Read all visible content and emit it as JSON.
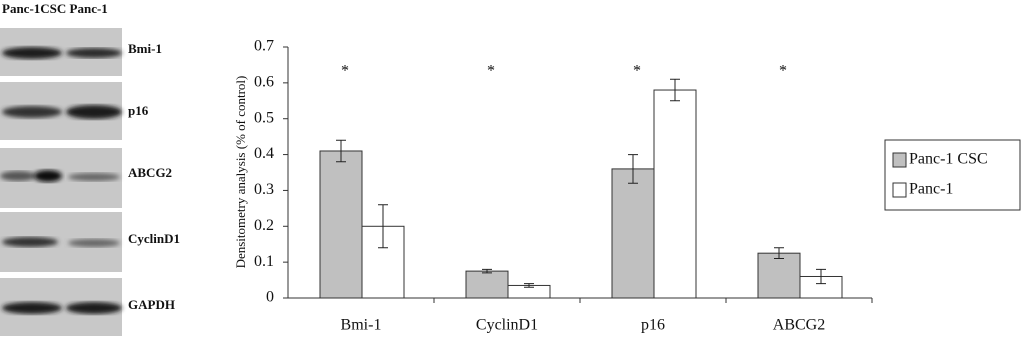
{
  "blot": {
    "header": "Panc-1CSC Panc-1",
    "rows": [
      "Bmi-1",
      "p16",
      "ABCG2",
      "CyclinD1",
      "GAPDH"
    ]
  },
  "chart_data": {
    "type": "bar",
    "y_label": "Densitometry analysis  (% of control)",
    "categories": [
      "Bmi-1",
      "CyclinD1",
      "p16",
      "ABCG2"
    ],
    "annotations": [
      "*",
      "*",
      "*",
      "*"
    ],
    "series": [
      {
        "name": "Panc-1 CSC",
        "color": "#c0c0c0",
        "values": [
          0.41,
          0.075,
          0.36,
          0.125
        ],
        "errors": [
          0.03,
          0.005,
          0.04,
          0.015
        ]
      },
      {
        "name": "Panc-1",
        "color": "#ffffff",
        "values": [
          0.2,
          0.035,
          0.58,
          0.06
        ],
        "errors": [
          0.06,
          0.005,
          0.03,
          0.02
        ]
      }
    ],
    "ylim": [
      0,
      0.7
    ],
    "yticks": [
      0,
      0.1,
      0.2,
      0.3,
      0.4,
      0.5,
      0.6,
      0.7
    ],
    "legend": "right"
  }
}
